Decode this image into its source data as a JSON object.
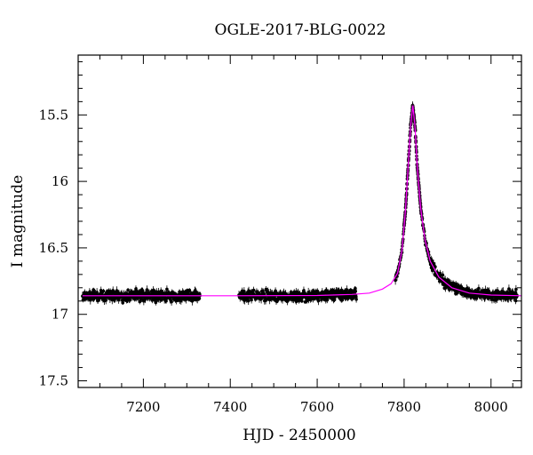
{
  "chart_data": {
    "type": "scatter",
    "title": "OGLE-2017-BLG-0022",
    "xlabel": "HJD - 2450000",
    "ylabel": "I magnitude",
    "xlim": [
      7050,
      8070
    ],
    "ylim": [
      17.55,
      15.05
    ],
    "y_inverted": true,
    "x_ticks": [
      7200,
      7400,
      7600,
      7800,
      8000
    ],
    "x_tick_labels": [
      "7200",
      "7400",
      "7600",
      "7800",
      "8000"
    ],
    "y_ticks": [
      15.5,
      16,
      16.5,
      17,
      17.5
    ],
    "y_tick_labels": [
      "15.5",
      "16",
      "16.5",
      "17",
      "17.5"
    ],
    "grid": false,
    "series": [
      {
        "kind": "observations",
        "color": "#000000",
        "marker": "filled circle with error bars",
        "baseline_mag": 16.875,
        "scatter_mag": 0.03,
        "segments": [
          [
            7060,
            7330
          ],
          [
            7420,
            7690
          ],
          [
            7780,
            8060
          ]
        ],
        "peak_hjd": 7820,
        "peak_mag": 15.43
      },
      {
        "kind": "model",
        "color": "#ff00ff",
        "x": [
          7060,
          7200,
          7400,
          7600,
          7680,
          7720,
          7750,
          7770,
          7785,
          7795,
          7803,
          7810,
          7815,
          7820,
          7825,
          7830,
          7838,
          7848,
          7860,
          7880,
          7910,
          7950,
          8000,
          8070
        ],
        "y": [
          16.86,
          16.86,
          16.86,
          16.858,
          16.85,
          16.84,
          16.81,
          16.77,
          16.69,
          16.52,
          16.22,
          15.85,
          15.58,
          15.43,
          15.58,
          15.88,
          16.2,
          16.44,
          16.6,
          16.72,
          16.8,
          16.84,
          16.855,
          16.86
        ]
      }
    ]
  }
}
